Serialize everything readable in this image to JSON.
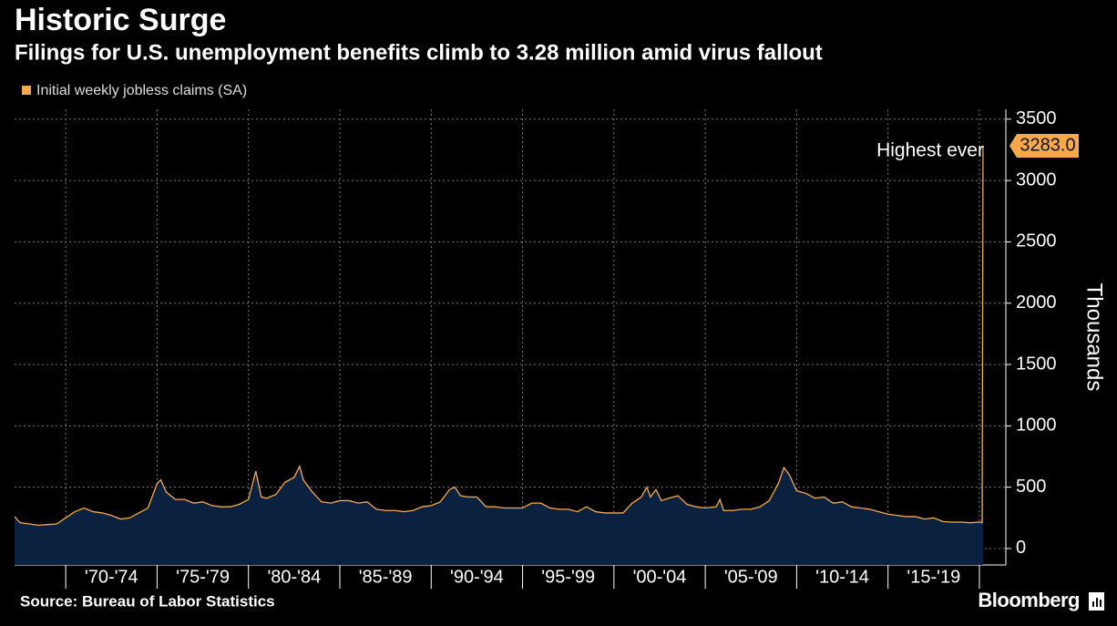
{
  "chart_data": {
    "type": "area",
    "title": "Historic Surge",
    "subtitle": "Filings for U.S. unemployment benefits climb to 3.28 million amid virus fallout",
    "y_axis_label": "Thousands",
    "source": "Source: Bureau of Labor Statistics",
    "brand": "Bloomberg",
    "annotation": "Highest ever",
    "x": [
      1967.2,
      1967.5,
      1968,
      1968.5,
      1969,
      1969.5,
      1970,
      1970.5,
      1971,
      1971.5,
      1972,
      1972.5,
      1973,
      1973.5,
      1974,
      1974.5,
      1975,
      1975.2,
      1975.5,
      1976,
      1976.5,
      1977,
      1977.5,
      1978,
      1978.5,
      1979,
      1979.5,
      1980,
      1980.4,
      1980.7,
      1981,
      1981.5,
      1982,
      1982.5,
      1982.8,
      1983,
      1983.5,
      1984,
      1984.5,
      1985,
      1985.5,
      1986,
      1986.5,
      1987,
      1987.5,
      1988,
      1988.5,
      1989,
      1989.5,
      1990,
      1990.5,
      1991,
      1991.3,
      1991.6,
      1992,
      1992.5,
      1993,
      1993.5,
      1994,
      1994.5,
      1995,
      1995.5,
      1996,
      1996.5,
      1997,
      1997.5,
      1998,
      1998.5,
      1999,
      1999.5,
      2000,
      2000.5,
      2001,
      2001.5,
      2001.8,
      2002,
      2002.3,
      2002.6,
      2003,
      2003.5,
      2004,
      2004.5,
      2005,
      2005.6,
      2005.8,
      2006,
      2006.5,
      2007,
      2007.5,
      2008,
      2008.5,
      2009,
      2009.3,
      2009.6,
      2010,
      2010.5,
      2011,
      2011.5,
      2012,
      2012.5,
      2013,
      2013.5,
      2014,
      2014.5,
      2015,
      2015.5,
      2016,
      2016.5,
      2017,
      2017.5,
      2018,
      2018.5,
      2019,
      2019.5,
      2020,
      2020.15,
      2020.2
    ],
    "series": [
      {
        "name": "Initial weekly jobless claims (SA)",
        "color": "#f7a84a",
        "fill": "#0b2140",
        "values": [
          260,
          210,
          200,
          190,
          195,
          200,
          250,
          300,
          330,
          300,
          290,
          270,
          240,
          250,
          290,
          330,
          530,
          560,
          460,
          400,
          400,
          370,
          380,
          350,
          340,
          340,
          360,
          400,
          630,
          420,
          410,
          440,
          540,
          580,
          670,
          560,
          460,
          380,
          370,
          390,
          390,
          370,
          380,
          320,
          310,
          310,
          300,
          310,
          340,
          350,
          380,
          480,
          500,
          430,
          420,
          420,
          340,
          340,
          330,
          330,
          330,
          370,
          370,
          330,
          320,
          320,
          300,
          340,
          300,
          290,
          290,
          290,
          370,
          420,
          500,
          420,
          480,
          390,
          410,
          430,
          360,
          340,
          330,
          340,
          400,
          310,
          310,
          320,
          320,
          340,
          390,
          530,
          660,
          600,
          470,
          450,
          410,
          420,
          370,
          380,
          340,
          330,
          320,
          300,
          280,
          270,
          260,
          260,
          240,
          250,
          220,
          215,
          215,
          210,
          215,
          211,
          3283
        ],
        "value_labels": [
          null,
          null,
          null,
          null,
          null,
          null,
          null,
          null,
          null,
          null,
          null,
          null,
          null,
          null,
          null,
          null,
          null,
          null,
          null,
          null,
          null,
          null,
          null,
          null,
          null,
          null,
          null,
          null,
          null,
          null,
          null,
          null,
          null,
          null,
          null,
          null,
          null,
          null,
          null,
          null,
          null,
          null,
          null,
          null,
          null,
          null,
          null,
          null,
          null,
          null,
          null,
          null,
          null,
          null,
          null,
          null,
          null,
          null,
          null,
          null,
          null,
          null,
          null,
          null,
          null,
          null,
          null,
          null,
          null,
          null,
          null,
          null,
          null,
          null,
          null,
          null,
          null,
          null,
          null,
          null,
          null,
          null,
          null,
          null,
          null,
          null,
          null,
          null,
          null,
          null,
          null,
          null,
          null,
          null,
          null,
          null,
          null,
          null,
          null,
          null,
          null,
          null,
          null,
          null,
          null,
          null,
          null,
          null,
          null,
          null,
          null,
          null,
          null,
          null,
          null,
          null,
          "3283.0"
        ]
      }
    ],
    "xlim": [
      1967.2,
      2020.75
    ],
    "xticks": [
      1970,
      1975,
      1980,
      1985,
      1990,
      1995,
      2000,
      2005,
      2010,
      2015,
      2020
    ],
    "x_period_labels": [
      "'70-'74",
      "'75-'79",
      "'80-'84",
      "'85-'89",
      "'90-'94",
      "'95-'99",
      "'00-'04",
      "'05-'09",
      "'10-'14",
      "'15-'19"
    ],
    "ylim": [
      -134,
      3580
    ],
    "yticks": [
      0,
      500,
      1000,
      1500,
      2000,
      2500,
      3000,
      3500
    ],
    "grid": true
  }
}
